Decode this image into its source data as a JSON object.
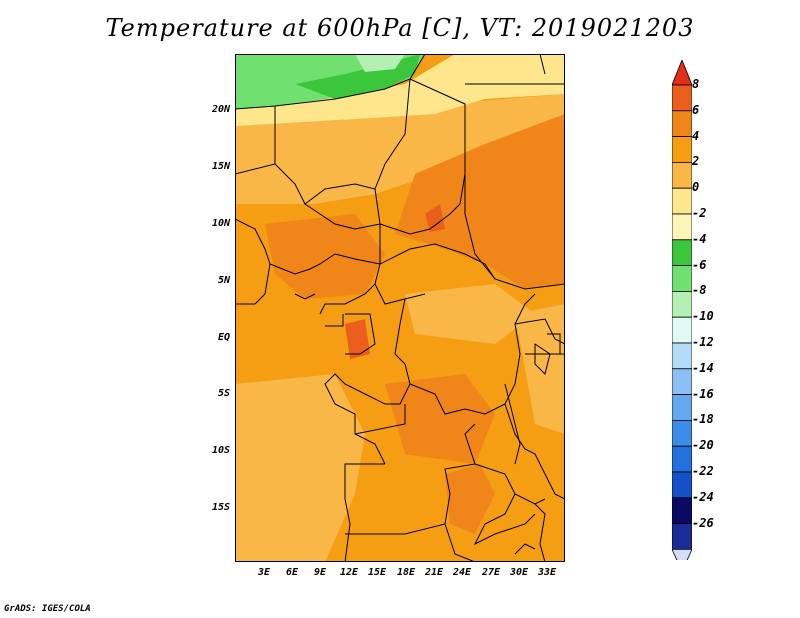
{
  "title": "Temperature at 600hPa [C], VT: 2019021203",
  "credit": "GrADS: IGES/COLA",
  "map": {
    "y_labels": [
      "20N",
      "15N",
      "10N",
      "5N",
      "EQ",
      "5S",
      "10S",
      "15S"
    ],
    "x_labels": [
      "3E",
      "6E",
      "9E",
      "12E",
      "15E",
      "18E",
      "21E",
      "24E",
      "27E",
      "30E",
      "33E"
    ],
    "colors": {
      "orange_light": "#f9b748",
      "orange": "#f59e14",
      "orange_deep": "#f08519",
      "red_orange": "#ea5f1d",
      "yellow": "#fde68c",
      "pale_yellow": "#fef6b8",
      "green": "#3cc63c",
      "light_green": "#70e070",
      "pale_green": "#b4f0b4"
    }
  },
  "colorbar": {
    "labels": [
      "8",
      "6",
      "4",
      "2",
      "0",
      "-2",
      "-4",
      "-6",
      "-8",
      "-10",
      "-12",
      "-14",
      "-16",
      "-18",
      "-20",
      "-22",
      "-24",
      "-26"
    ],
    "colors": [
      "#e42c17",
      "#ea5f1d",
      "#f08519",
      "#f59e14",
      "#f9b748",
      "#fde68c",
      "#fef6b8",
      "#3cc63c",
      "#70e070",
      "#b4f0b4",
      "#e0faf4",
      "#b4dcf8",
      "#8cc0f4",
      "#64a8f0",
      "#3c8ce8",
      "#2470dc",
      "#1450c8",
      "#0a0a64",
      "#1a2c96"
    ],
    "top_arrow_color": "#e42c17",
    "bottom_arrow_color": "#d7dcf5"
  }
}
